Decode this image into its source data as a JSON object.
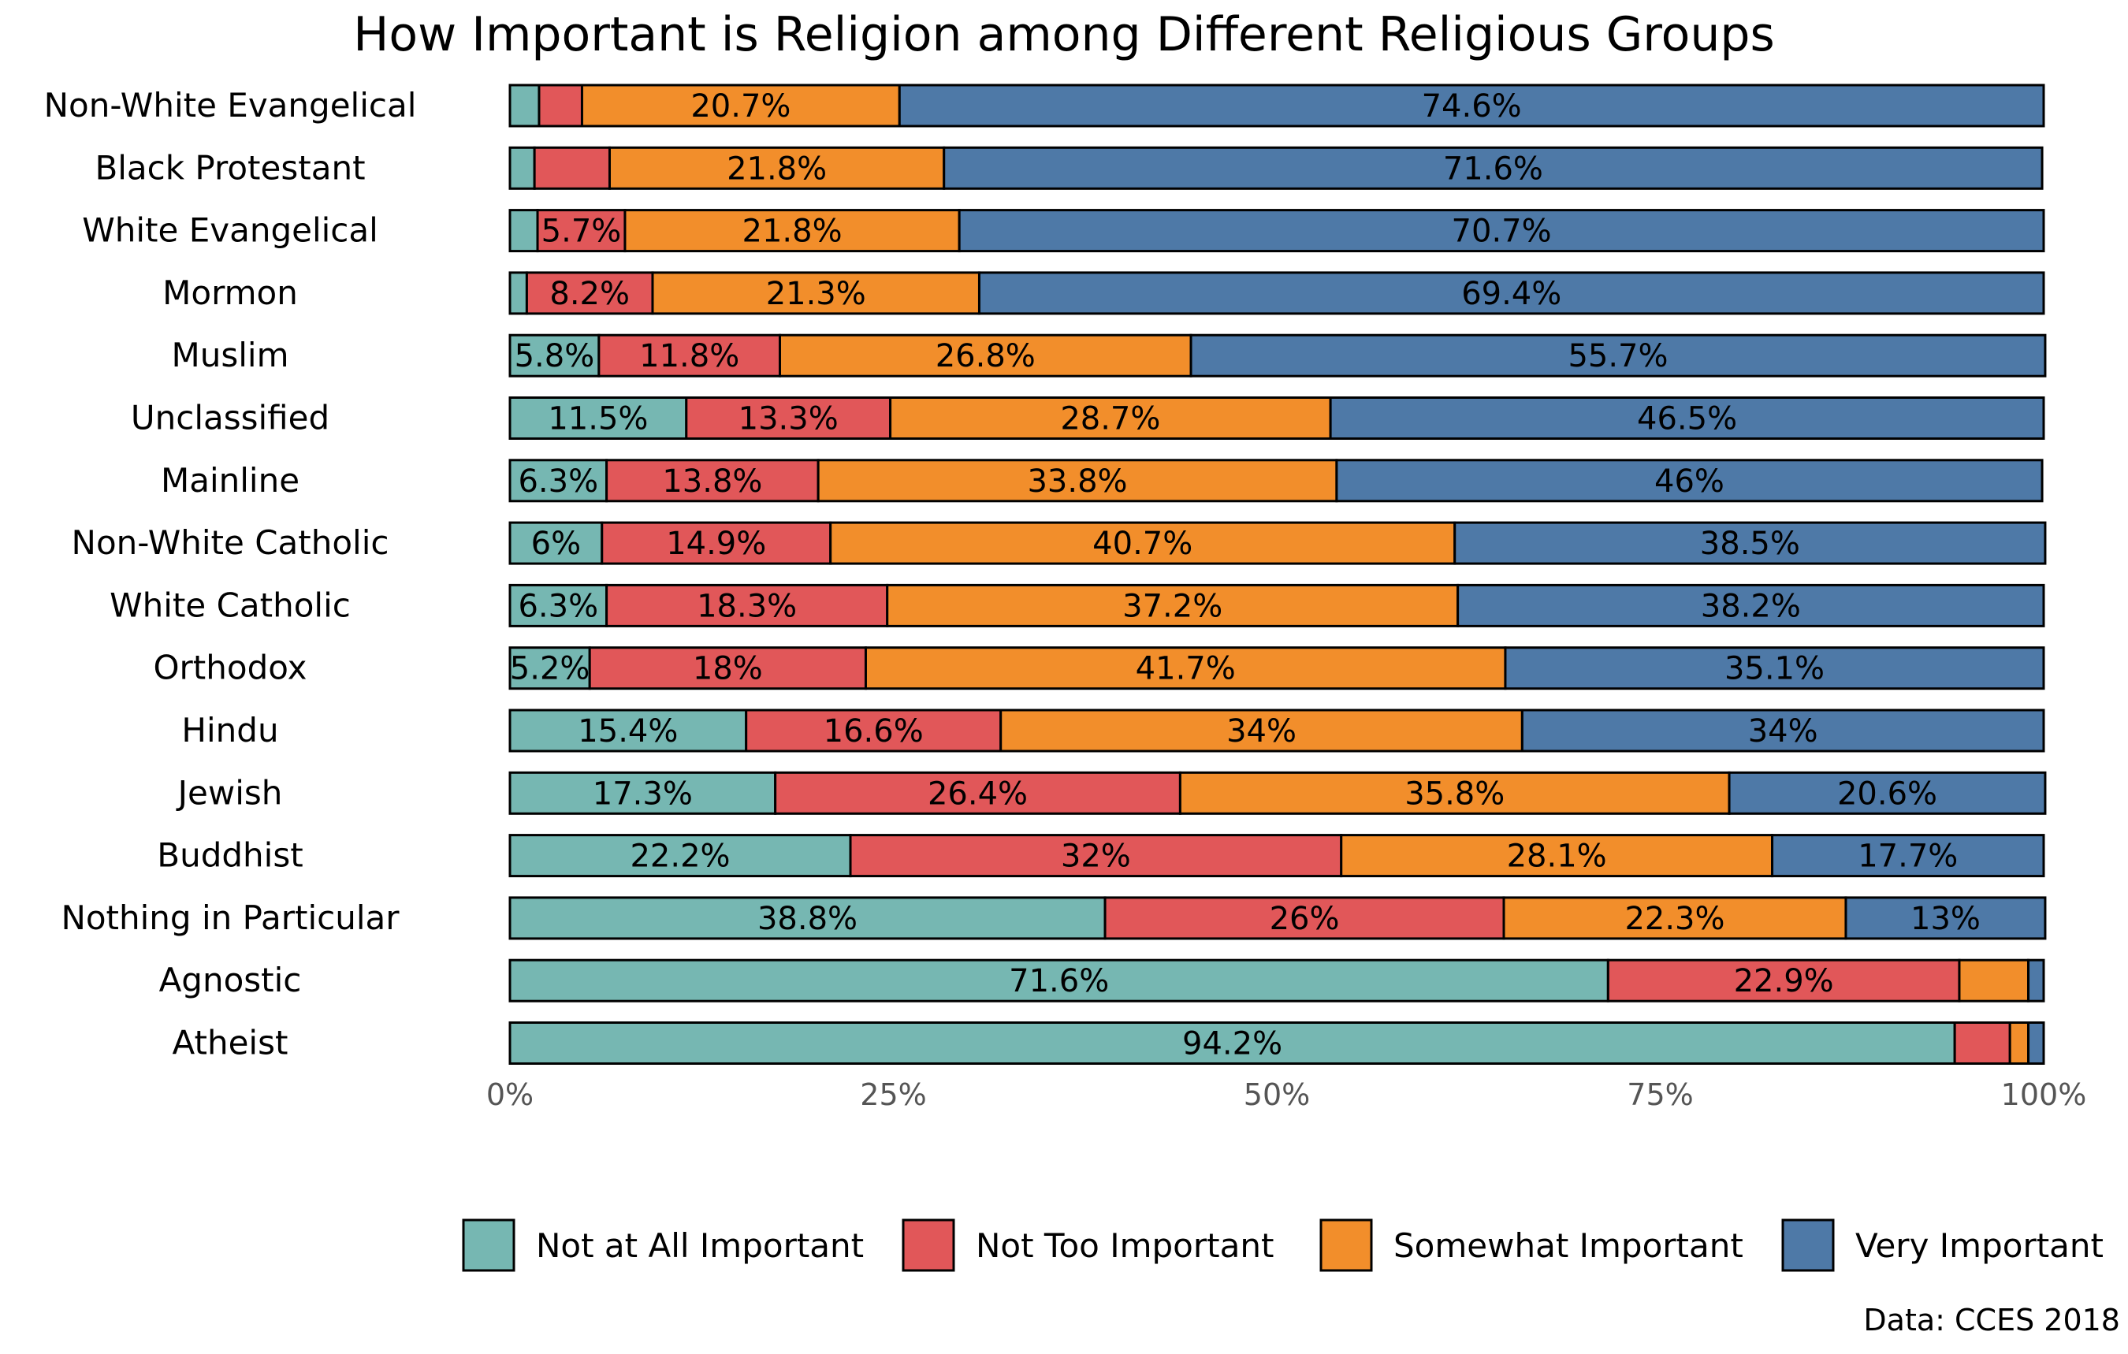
{
  "chart_data": {
    "type": "bar",
    "orientation": "horizontal",
    "stacked": true,
    "title": "How Important is Religion among Different Religious Groups",
    "caption": "Data: CCES 2018",
    "xlim": [
      0,
      100
    ],
    "x_ticks": [
      "0%",
      "25%",
      "50%",
      "75%",
      "100%"
    ],
    "legend_position": "bottom",
    "series": [
      {
        "name": "Not at All Important",
        "color": "#76B7B2"
      },
      {
        "name": "Not Too Important",
        "color": "#E15759"
      },
      {
        "name": "Somewhat Important",
        "color": "#F28E2B"
      },
      {
        "name": "Very Important",
        "color": "#4E79A7"
      }
    ],
    "rows": [
      {
        "category": "Non-White Evangelical",
        "values": [
          1.9,
          2.8,
          20.7,
          74.6
        ],
        "labels": [
          "",
          "",
          "20.7%",
          "74.6%"
        ]
      },
      {
        "category": "Black Protestant",
        "values": [
          1.6,
          4.9,
          21.8,
          71.6
        ],
        "labels": [
          "",
          "",
          "21.8%",
          "71.6%"
        ]
      },
      {
        "category": "White Evangelical",
        "values": [
          1.8,
          5.7,
          21.8,
          70.7
        ],
        "labels": [
          "",
          "5.7%",
          "21.8%",
          "70.7%"
        ]
      },
      {
        "category": "Mormon",
        "values": [
          1.1,
          8.2,
          21.3,
          69.4
        ],
        "labels": [
          "",
          "8.2%",
          "21.3%",
          "69.4%"
        ]
      },
      {
        "category": "Muslim",
        "values": [
          5.8,
          11.8,
          26.8,
          55.7
        ],
        "labels": [
          "5.8%",
          "11.8%",
          "26.8%",
          "55.7%"
        ]
      },
      {
        "category": "Unclassified",
        "values": [
          11.5,
          13.3,
          28.7,
          46.5
        ],
        "labels": [
          "11.5%",
          "13.3%",
          "28.7%",
          "46.5%"
        ]
      },
      {
        "category": "Mainline",
        "values": [
          6.3,
          13.8,
          33.8,
          46
        ],
        "labels": [
          "6.3%",
          "13.8%",
          "33.8%",
          "46%"
        ]
      },
      {
        "category": "Non-White Catholic",
        "values": [
          6,
          14.9,
          40.7,
          38.5
        ],
        "labels": [
          "6%",
          "14.9%",
          "40.7%",
          "38.5%"
        ]
      },
      {
        "category": "White Catholic",
        "values": [
          6.3,
          18.3,
          37.2,
          38.2
        ],
        "labels": [
          "6.3%",
          "18.3%",
          "37.2%",
          "38.2%"
        ]
      },
      {
        "category": "Orthodox",
        "values": [
          5.2,
          18,
          41.7,
          35.1
        ],
        "labels": [
          "5.2%",
          "18%",
          "41.7%",
          "35.1%"
        ]
      },
      {
        "category": "Hindu",
        "values": [
          15.4,
          16.6,
          34,
          34
        ],
        "labels": [
          "15.4%",
          "16.6%",
          "34%",
          "34%"
        ]
      },
      {
        "category": "Jewish",
        "values": [
          17.3,
          26.4,
          35.8,
          20.6
        ],
        "labels": [
          "17.3%",
          "26.4%",
          "35.8%",
          "20.6%"
        ]
      },
      {
        "category": "Buddhist",
        "values": [
          22.2,
          32,
          28.1,
          17.7
        ],
        "labels": [
          "22.2%",
          "32%",
          "28.1%",
          "17.7%"
        ]
      },
      {
        "category": "Nothing in Particular",
        "values": [
          38.8,
          26,
          22.3,
          13
        ],
        "labels": [
          "38.8%",
          "26%",
          "22.3%",
          "13%"
        ]
      },
      {
        "category": "Agnostic",
        "values": [
          71.6,
          22.9,
          4.5,
          1.0
        ],
        "labels": [
          "71.6%",
          "22.9%",
          "",
          ""
        ]
      },
      {
        "category": "Atheist",
        "values": [
          94.2,
          3.6,
          1.2,
          1.0
        ],
        "labels": [
          "94.2%",
          "",
          "",
          ""
        ]
      }
    ]
  }
}
